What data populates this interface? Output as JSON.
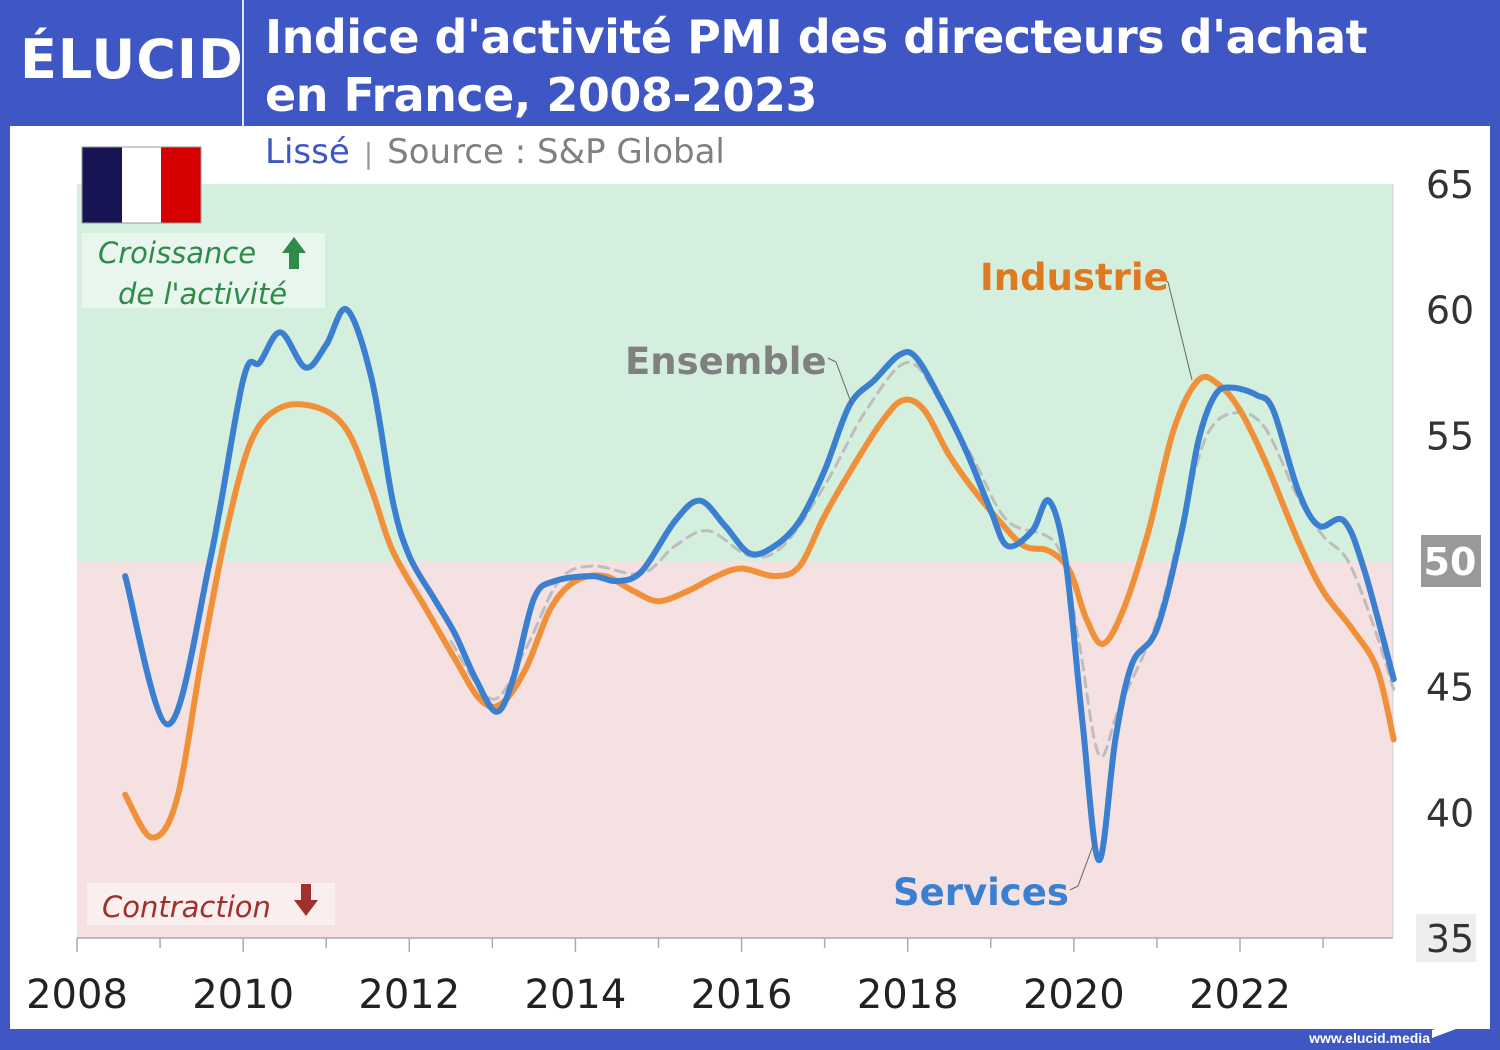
{
  "header": {
    "logo": "ÉLUCID",
    "title_line1": "Indice d'activité PMI des directeurs d'achat",
    "title_line2": "en France, 2008-2023"
  },
  "subtitle": {
    "smoothing": "Lissé",
    "separator": "|",
    "source": "Source : S&P Global"
  },
  "annotations": {
    "growth_line1": "Croissance",
    "growth_line2": "de l'activité",
    "contraction": "Contraction"
  },
  "footer": {
    "url": "www.elucid.media"
  },
  "colors": {
    "frame": "#3f57c4",
    "growth_zone": "#d5efdf",
    "contraction_zone": "#f5e1e1",
    "services": "#3a7fd0",
    "industrie": "#f0913a",
    "ensemble": "#bdbdbd",
    "growth_text": "#2e8b4a",
    "contraction_text": "#a0302c"
  },
  "chart_data": {
    "type": "line",
    "title": "Indice d'activité PMI des directeurs d'achat en France, 2008-2023",
    "xlabel": "",
    "ylabel": "",
    "xlim": [
      2008,
      2023.9
    ],
    "ylim": [
      35,
      65
    ],
    "x_ticks": [
      "2008",
      "2010",
      "2012",
      "2014",
      "2016",
      "2018",
      "2020",
      "2022"
    ],
    "y_ticks": [
      "35",
      "40",
      "45",
      "50",
      "55",
      "60",
      "65"
    ],
    "y_axis_position": "right",
    "threshold": 50,
    "grid": false,
    "series": [
      {
        "name": "Services",
        "style": "solid",
        "color": "#3a7fd0",
        "points": [
          [
            2008.58,
            49.4
          ],
          [
            2009.1,
            43.5
          ],
          [
            2009.6,
            50
          ],
          [
            2010.0,
            57.2
          ],
          [
            2010.2,
            57.9
          ],
          [
            2010.45,
            59.1
          ],
          [
            2010.75,
            57.7
          ],
          [
            2011.0,
            58.6
          ],
          [
            2011.25,
            60
          ],
          [
            2011.55,
            57.2
          ],
          [
            2011.8,
            52.4
          ],
          [
            2012.0,
            50.2
          ],
          [
            2012.3,
            48.5
          ],
          [
            2012.55,
            47.1
          ],
          [
            2012.8,
            45.3
          ],
          [
            2013.05,
            44
          ],
          [
            2013.25,
            45.3
          ],
          [
            2013.5,
            48.5
          ],
          [
            2013.75,
            49.2
          ],
          [
            2014.2,
            49.4
          ],
          [
            2014.5,
            49.2
          ],
          [
            2014.8,
            49.6
          ],
          [
            2015.2,
            51.6
          ],
          [
            2015.5,
            52.4
          ],
          [
            2015.8,
            51.4
          ],
          [
            2016.1,
            50.3
          ],
          [
            2016.4,
            50.6
          ],
          [
            2016.7,
            51.6
          ],
          [
            2017.0,
            53.6
          ],
          [
            2017.3,
            56.2
          ],
          [
            2017.6,
            57.2
          ],
          [
            2017.9,
            58.2
          ],
          [
            2018.1,
            58.1
          ],
          [
            2018.4,
            56.4
          ],
          [
            2018.7,
            54.4
          ],
          [
            2019.0,
            52
          ],
          [
            2019.2,
            50.6
          ],
          [
            2019.5,
            51.2
          ],
          [
            2019.7,
            52.4
          ],
          [
            2019.9,
            50
          ],
          [
            2020.1,
            43.7
          ],
          [
            2020.3,
            38.1
          ],
          [
            2020.5,
            42.9
          ],
          [
            2020.7,
            45.9
          ],
          [
            2021.0,
            47.3
          ],
          [
            2021.3,
            51.2
          ],
          [
            2021.5,
            54.8
          ],
          [
            2021.7,
            56.6
          ],
          [
            2021.9,
            56.9
          ],
          [
            2022.2,
            56.6
          ],
          [
            2022.4,
            56
          ],
          [
            2022.7,
            52.8
          ],
          [
            2022.95,
            51.4
          ],
          [
            2023.25,
            51.6
          ],
          [
            2023.5,
            49.6
          ],
          [
            2023.85,
            45.3
          ]
        ]
      },
      {
        "name": "Industrie",
        "style": "solid",
        "color": "#f0913a",
        "points": [
          [
            2008.58,
            40.7
          ],
          [
            2008.9,
            39
          ],
          [
            2009.2,
            40.5
          ],
          [
            2009.5,
            46.1
          ],
          [
            2009.8,
            51.2
          ],
          [
            2010.1,
            54.8
          ],
          [
            2010.45,
            56.1
          ],
          [
            2010.9,
            56.1
          ],
          [
            2011.25,
            55.2
          ],
          [
            2011.55,
            52.8
          ],
          [
            2011.8,
            50.4
          ],
          [
            2012.2,
            48.1
          ],
          [
            2012.55,
            46.1
          ],
          [
            2012.85,
            44.5
          ],
          [
            2013.1,
            44.3
          ],
          [
            2013.4,
            45.7
          ],
          [
            2013.7,
            48.1
          ],
          [
            2014.0,
            49.2
          ],
          [
            2014.35,
            49.4
          ],
          [
            2014.7,
            48.8
          ],
          [
            2015.0,
            48.4
          ],
          [
            2015.35,
            48.8
          ],
          [
            2015.7,
            49.4
          ],
          [
            2016.0,
            49.7
          ],
          [
            2016.4,
            49.4
          ],
          [
            2016.7,
            49.8
          ],
          [
            2017.0,
            51.8
          ],
          [
            2017.35,
            53.8
          ],
          [
            2017.7,
            55.6
          ],
          [
            2017.95,
            56.4
          ],
          [
            2018.2,
            56
          ],
          [
            2018.5,
            54.2
          ],
          [
            2018.8,
            52.8
          ],
          [
            2019.1,
            51.6
          ],
          [
            2019.4,
            50.6
          ],
          [
            2019.7,
            50.4
          ],
          [
            2019.95,
            49.6
          ],
          [
            2020.15,
            47.7
          ],
          [
            2020.35,
            46.7
          ],
          [
            2020.6,
            48.1
          ],
          [
            2020.9,
            51.2
          ],
          [
            2021.2,
            55.2
          ],
          [
            2021.5,
            57.2
          ],
          [
            2021.75,
            57
          ],
          [
            2022.0,
            56
          ],
          [
            2022.3,
            54
          ],
          [
            2022.7,
            50.8
          ],
          [
            2023.0,
            48.8
          ],
          [
            2023.35,
            47.3
          ],
          [
            2023.65,
            45.7
          ],
          [
            2023.85,
            42.9
          ]
        ]
      },
      {
        "name": "Ensemble",
        "style": "dashed",
        "color": "#bdbdbd",
        "points": [
          [
            2012.5,
            46.8
          ],
          [
            2013.0,
            44.5
          ],
          [
            2013.4,
            46.5
          ],
          [
            2013.8,
            49.2
          ],
          [
            2014.2,
            49.8
          ],
          [
            2014.8,
            49.5
          ],
          [
            2015.2,
            50.6
          ],
          [
            2015.6,
            51.2
          ],
          [
            2016.1,
            50.2
          ],
          [
            2016.5,
            50.6
          ],
          [
            2017.0,
            53
          ],
          [
            2017.5,
            56
          ],
          [
            2018.0,
            57.9
          ],
          [
            2018.4,
            56.3
          ],
          [
            2018.8,
            54
          ],
          [
            2019.2,
            51.6
          ],
          [
            2019.8,
            50.6
          ],
          [
            2020.05,
            47
          ],
          [
            2020.3,
            42.3
          ],
          [
            2020.55,
            44.2
          ],
          [
            2021.0,
            47.6
          ],
          [
            2021.3,
            51.5
          ],
          [
            2021.6,
            55
          ],
          [
            2021.95,
            55.9
          ],
          [
            2022.3,
            55.3
          ],
          [
            2022.7,
            52.5
          ],
          [
            2023.0,
            51
          ],
          [
            2023.3,
            50
          ],
          [
            2023.6,
            47.5
          ],
          [
            2023.85,
            44.9
          ]
        ]
      }
    ],
    "labels": {
      "services": "Services",
      "industrie": "Industrie",
      "ensemble": "Ensemble"
    },
    "highlighted_tick": "50"
  }
}
